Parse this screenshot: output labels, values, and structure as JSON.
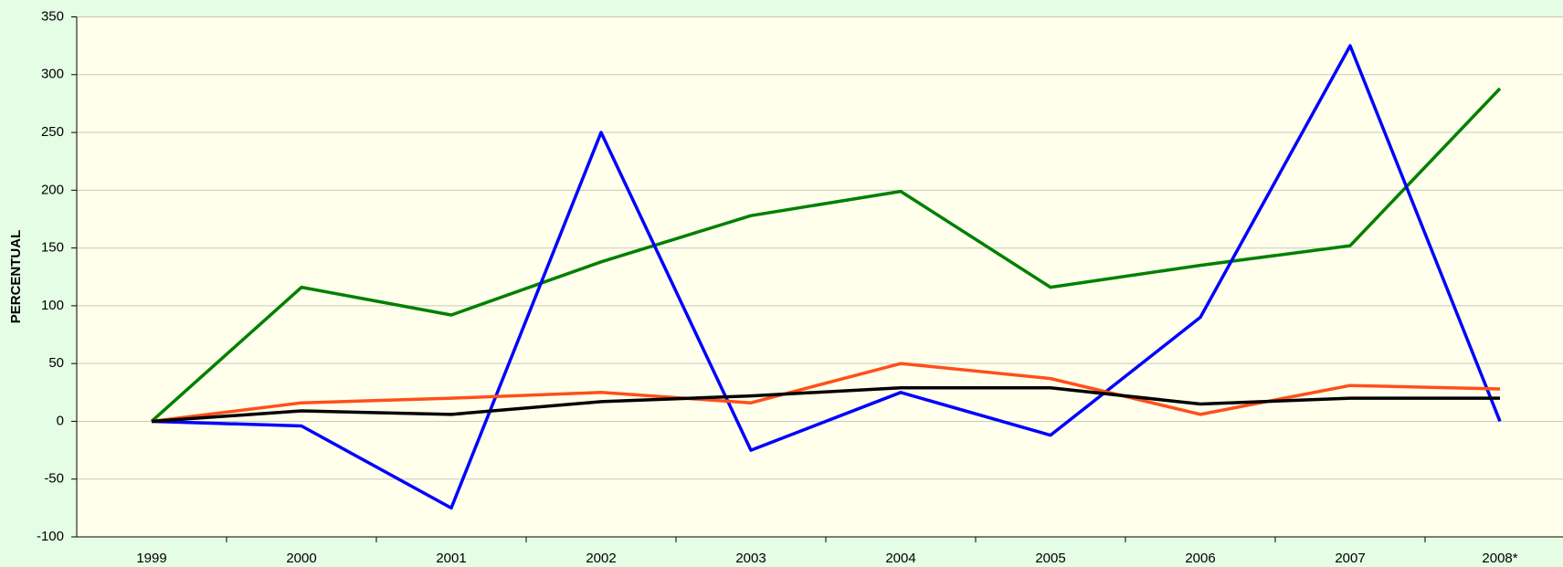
{
  "chart_data": {
    "type": "line",
    "ylabel": "PERCENTUAL",
    "categories": [
      "1999",
      "2000",
      "2001",
      "2002",
      "2003",
      "2004",
      "2005",
      "2006",
      "2007",
      "2008*"
    ],
    "series": [
      {
        "color": "#008000",
        "values": [
          0,
          116,
          92,
          138,
          178,
          199,
          116,
          135,
          152,
          288
        ]
      },
      {
        "color": "#0000ff",
        "values": [
          0,
          -4,
          -75,
          250,
          -25,
          25,
          -12,
          90,
          325,
          0
        ]
      },
      {
        "color": "#ff4f1a",
        "values": [
          0,
          16,
          20,
          25,
          16,
          50,
          37,
          6,
          31,
          28
        ]
      },
      {
        "color": "#000000",
        "values": [
          0,
          9,
          6,
          17,
          22,
          29,
          29,
          15,
          20,
          20
        ]
      }
    ],
    "ylim": [
      -100,
      350
    ],
    "yticks": [
      -100,
      -50,
      0,
      50,
      100,
      150,
      200,
      250,
      300,
      350
    ],
    "grid": true
  }
}
